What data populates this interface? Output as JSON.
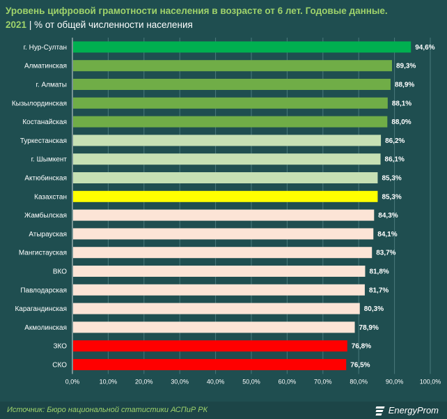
{
  "header": {
    "title_line1": "Уровень цифровой грамотности населения в возрасте от 6 лет. Годовые данные.",
    "year": "2021",
    "separator": "|",
    "unit": "% от общей численности населения"
  },
  "footer": {
    "source": "Источник: Бюро национальной статистики АСПиР РК",
    "logo_text": "EnergyProm"
  },
  "colors": {
    "background": "#1f4e50",
    "top": "#00b050",
    "high": "#70ad47",
    "mid": "#c6e0b4",
    "national": "#ffff00",
    "low": "#fce4d6",
    "bottom": "#ff0000",
    "grid": "#4a7a7c"
  },
  "chart_data": {
    "type": "bar",
    "orientation": "horizontal",
    "categories": [
      "г. Нур-Султан",
      "Алматинская",
      "г. Алматы",
      "Кызылординская",
      "Костанайская",
      "Туркестанская",
      "г. Шымкент",
      "Актюбинская",
      "Казахстан",
      "Жамбылская",
      "Атырауская",
      "Мангистауская",
      "ВКО",
      "Павлодарская",
      "Карагандинская",
      "Акмолинская",
      "ЗКО",
      "СКО"
    ],
    "values": [
      94.6,
      89.3,
      88.9,
      88.1,
      88.0,
      86.2,
      86.1,
      85.3,
      85.3,
      84.3,
      84.1,
      83.7,
      81.8,
      81.7,
      80.3,
      78.9,
      76.8,
      76.5
    ],
    "value_labels": [
      "94,6%",
      "89,3%",
      "88,9%",
      "88,1%",
      "88,0%",
      "86,2%",
      "86,1%",
      "85,3%",
      "85,3%",
      "84,3%",
      "84,1%",
      "83,7%",
      "81,8%",
      "81,7%",
      "80,3%",
      "78,9%",
      "76,8%",
      "76,5%"
    ],
    "bar_groups": [
      "top",
      "high",
      "high",
      "high",
      "high",
      "mid",
      "mid",
      "mid",
      "national",
      "low",
      "low",
      "low",
      "low",
      "low",
      "low",
      "low",
      "bottom",
      "bottom"
    ],
    "xlim": [
      0,
      100
    ],
    "xticks": [
      0,
      10,
      20,
      30,
      40,
      50,
      60,
      70,
      80,
      90,
      100
    ],
    "xtick_labels": [
      "0,0%",
      "10,0%",
      "20,0%",
      "30,0%",
      "40,0%",
      "50,0%",
      "60,0%",
      "70,0%",
      "80,0%",
      "90,0%",
      "100,0%"
    ],
    "grid": true
  }
}
